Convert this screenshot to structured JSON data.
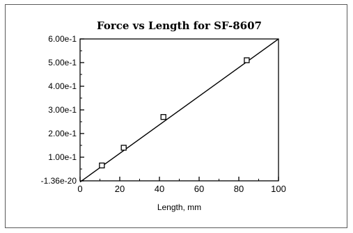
{
  "chart_data": {
    "type": "scatter",
    "title": "Force vs Length for SF-8607",
    "xlabel": "Length, mm",
    "ylabel": "",
    "xlim": [
      0,
      100
    ],
    "ylim": [
      0,
      0.6
    ],
    "x_ticks": [
      "0",
      "20",
      "40",
      "60",
      "80",
      "100"
    ],
    "y_ticks": [
      "-1.36e-20",
      "1.00e-1",
      "2.00e-1",
      "3.00e-1",
      "4.00e-1",
      "5.00e-1",
      "6.00e-1"
    ],
    "series": [
      {
        "marker": "square",
        "x": [
          11,
          22,
          42,
          84
        ],
        "y": [
          0.065,
          0.14,
          0.27,
          0.51
        ]
      }
    ],
    "fit_line": {
      "x": [
        0,
        100
      ],
      "y": [
        -0.005,
        0.6
      ]
    },
    "grid": false,
    "legend": "none"
  }
}
